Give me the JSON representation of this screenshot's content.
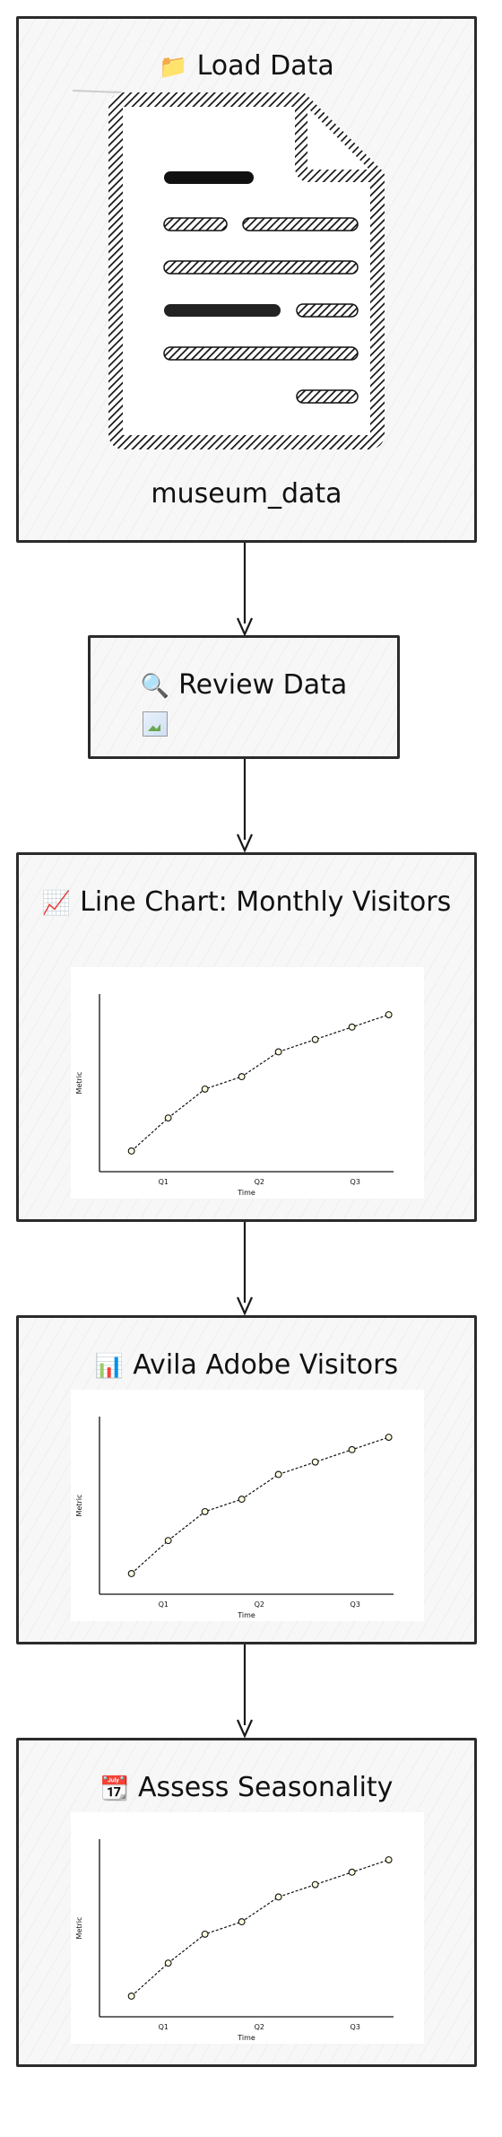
{
  "nodes": {
    "load": {
      "icon": "folder-icon",
      "emoji": "📁",
      "title": "Load Data",
      "caption": "museum_data"
    },
    "review": {
      "icon": "magnifier-icon",
      "emoji": "🔍",
      "title": "Review Data",
      "image_icon": "broken-image-icon"
    },
    "line": {
      "icon": "line-chart-icon",
      "emoji": "📈",
      "title": "Line Chart: Monthly Visitors"
    },
    "avila": {
      "icon": "bar-chart-icon",
      "emoji": "📊",
      "title": "Avila Adobe Visitors"
    },
    "season": {
      "icon": "calendar-icon",
      "emoji": "📆",
      "title": "Assess Seasonality"
    }
  },
  "chart_data": [
    {
      "type": "line",
      "xlabel": "Time",
      "ylabel": "Metric",
      "xticks": [
        "Q1",
        "Q2",
        "Q3"
      ],
      "x": [
        0,
        1,
        2,
        3,
        4,
        5,
        6,
        7
      ],
      "values": [
        1,
        2.6,
        4.0,
        4.6,
        5.8,
        6.4,
        7.0,
        7.6
      ]
    },
    {
      "type": "line",
      "xlabel": "Time",
      "ylabel": "Metric",
      "xticks": [
        "Q1",
        "Q2",
        "Q3"
      ],
      "x": [
        0,
        1,
        2,
        3,
        4,
        5,
        6,
        7
      ],
      "values": [
        1,
        2.6,
        4.0,
        4.6,
        5.8,
        6.4,
        7.0,
        7.6
      ]
    },
    {
      "type": "line",
      "xlabel": "Time",
      "ylabel": "Metric",
      "xticks": [
        "Q1",
        "Q2",
        "Q3"
      ],
      "x": [
        0,
        1,
        2,
        3,
        4,
        5,
        6,
        7
      ],
      "values": [
        1,
        2.6,
        4.0,
        4.6,
        5.8,
        6.4,
        7.0,
        7.6
      ]
    }
  ]
}
